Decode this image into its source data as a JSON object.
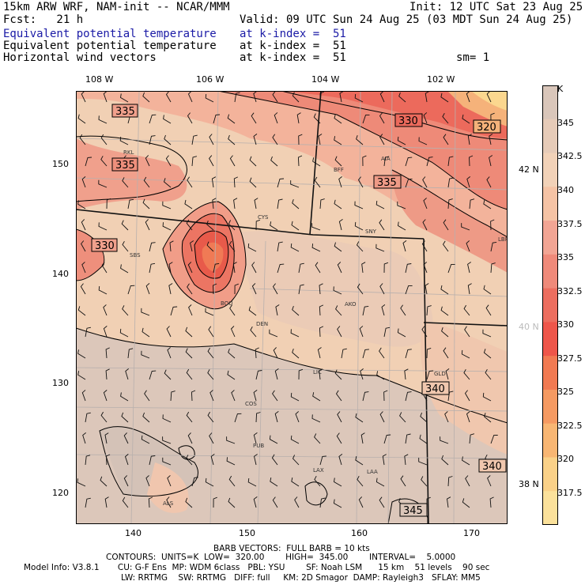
{
  "header": {
    "line1_left": "15km ARW WRF, NAM-init -- NCAR/MMM",
    "line1_right": "Init: 12 UTC Sat 23 Aug 25",
    "line2_left": "Fcst:   21 h",
    "line2_right": "Valid: 09 UTC Sun 24 Aug 25 (03 MDT Sun 24 Aug 25)",
    "fields": [
      {
        "name": "Equivalent potential temperature",
        "level": "at k-index =  51",
        "extra": ""
      },
      {
        "name": "Equivalent potential temperature",
        "level": "at k-index =  51",
        "extra": ""
      },
      {
        "name": "Horizontal wind vectors",
        "level": "at k-index =  51",
        "extra": "sm= 1"
      }
    ]
  },
  "axes": {
    "top_lon": [
      "108 W",
      "106 W",
      "104 W",
      "102 W"
    ],
    "left_y": [
      "150",
      "140",
      "130",
      "120"
    ],
    "bottom_x": [
      "140",
      "150",
      "160",
      "170"
    ],
    "right_lat": [
      "42 N",
      "40 N",
      "38 N"
    ]
  },
  "stations": [
    "RKL",
    "BFF",
    "AIA",
    "CYS",
    "SNY",
    "SBS",
    "DEN",
    "AKO",
    "BOU",
    "LIC",
    "GLD",
    "COS",
    "PUB",
    "LAX",
    "LAA",
    "ALS",
    "LBF"
  ],
  "contour_labels": [
    "335",
    "335",
    "330",
    "330",
    "320",
    "335",
    "340",
    "340",
    "345"
  ],
  "colorbar": {
    "unit": "K",
    "labels": [
      "345",
      "342.5",
      "340",
      "337.5",
      "335",
      "332.5",
      "330",
      "327.5",
      "325",
      "322.5",
      "320",
      "317.5"
    ],
    "colors": [
      "#d9c6ba",
      "#e6cbb8",
      "#f2d2b8",
      "#f5c3a5",
      "#f2a594",
      "#ef8a7a",
      "#ec6e5f",
      "#ee564a",
      "#f17a52",
      "#f59a62",
      "#f8b673",
      "#fad188",
      "#fbe19b"
    ]
  },
  "footer": {
    "barb": "BARB VECTORS:  FULL BARB = 10 kts",
    "contours": "CONTOURS:  UNITS=K  LOW=  320.00        HIGH=  345.00        INTERVAL=    5.0000",
    "model": "Model Info: V3.8.1       CU: G-F Ens  MP: WDM 6class   PBL: YSU        SF: Noah LSM      15 km    51 levels    90 sec",
    "phys": "LW: RRTMG    SW: RRTMG   DIFF: full     KM: 2D Smagor  DAMP: Rayleigh3   SFLAY: MM5"
  }
}
